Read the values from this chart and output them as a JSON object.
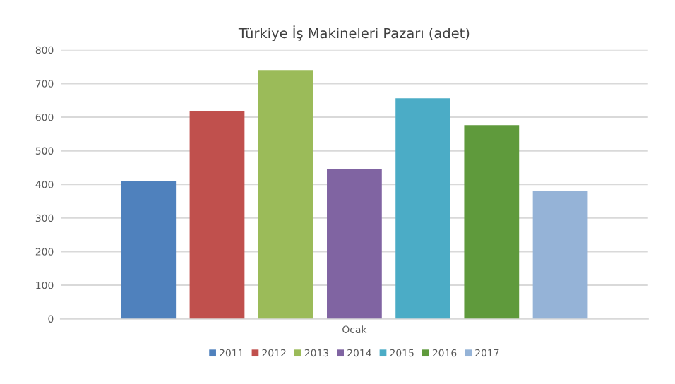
{
  "chart_data": {
    "type": "bar",
    "title": "Türkiye İş Makineleri Pazarı (adet)",
    "categories": [
      "Ocak"
    ],
    "series": [
      {
        "name": "2011",
        "color": "#4f81bd",
        "values": [
          411
        ]
      },
      {
        "name": "2012",
        "color": "#c0504d",
        "values": [
          619
        ]
      },
      {
        "name": "2013",
        "color": "#9bbb59",
        "values": [
          740
        ]
      },
      {
        "name": "2014",
        "color": "#8064a2",
        "values": [
          446
        ]
      },
      {
        "name": "2015",
        "color": "#4bacc6",
        "values": [
          656
        ]
      },
      {
        "name": "2016",
        "color": "#5f9a3c",
        "values": [
          576
        ]
      },
      {
        "name": "2017",
        "color": "#95b3d7",
        "values": [
          381
        ]
      }
    ],
    "ylim": [
      0,
      800
    ],
    "yticks": [
      0,
      100,
      200,
      300,
      400,
      500,
      600,
      700,
      800
    ],
    "grid": "y",
    "legend": "bottom"
  }
}
